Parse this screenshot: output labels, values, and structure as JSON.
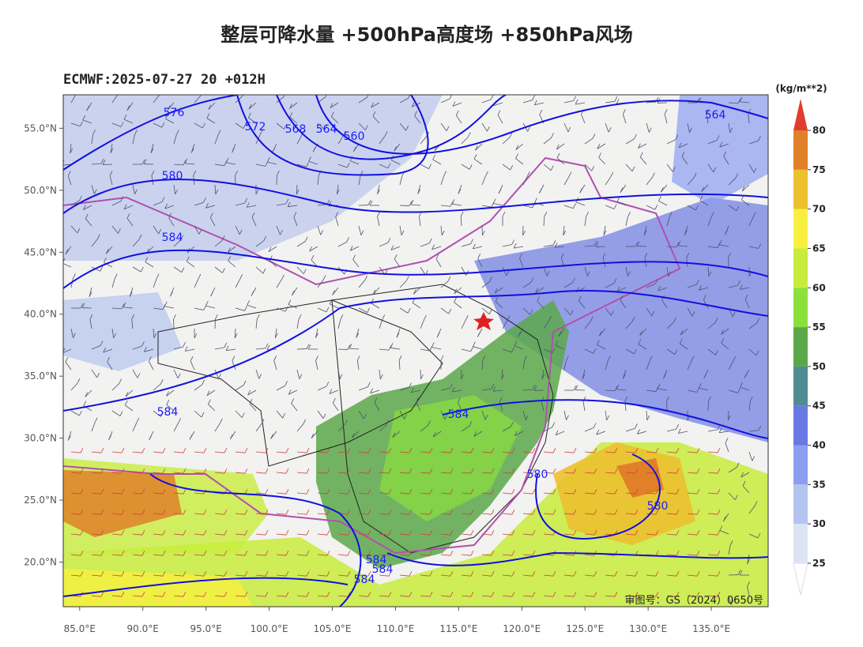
{
  "title": "整层可降水量 +500hPa高度场 +850hPa风场",
  "subtitle": "ECMWF:2025-07-27 20 +012H",
  "unit": "(kg/m**2)",
  "map_note": "审图号：GS（2024）0650号",
  "lon_range": [
    83.7,
    139.5
  ],
  "lat_range": [
    16.4,
    57.7
  ],
  "lon_ticks": [
    {
      "value": 85,
      "label": "85.0°E"
    },
    {
      "value": 90,
      "label": "90.0°E"
    },
    {
      "value": 95,
      "label": "95.0°E"
    },
    {
      "value": 100,
      "label": "100.0°E"
    },
    {
      "value": 105,
      "label": "105.0°E"
    },
    {
      "value": 110,
      "label": "110.0°E"
    },
    {
      "value": 115,
      "label": "115.0°E"
    },
    {
      "value": 120,
      "label": "120.0°E"
    },
    {
      "value": 125,
      "label": "125.0°E"
    },
    {
      "value": 130,
      "label": "130.0°E"
    },
    {
      "value": 135,
      "label": "135.0°E"
    }
  ],
  "lat_ticks": [
    {
      "value": 55,
      "label": "55.0°N"
    },
    {
      "value": 50,
      "label": "50.0°N"
    },
    {
      "value": 45,
      "label": "45.0°N"
    },
    {
      "value": 40,
      "label": "40.0°N"
    },
    {
      "value": 35,
      "label": "35.0°N"
    },
    {
      "value": 30,
      "label": "30.0°N"
    },
    {
      "value": 25,
      "label": "25.0°N"
    },
    {
      "value": 20,
      "label": "20.0°N"
    }
  ],
  "colorbar": {
    "levels": [
      25,
      30,
      35,
      40,
      45,
      50,
      55,
      60,
      65,
      70,
      75,
      80
    ],
    "colors": [
      "#dce4f4",
      "#b4c4f0",
      "#8c9ef0",
      "#6a78e4",
      "#4f8c94",
      "#5aa84a",
      "#8ce03c",
      "#c8ec3c",
      "#f8f040",
      "#ecc030",
      "#e08028",
      "#e03c30"
    ]
  },
  "contour_labels": [
    "576",
    "572",
    "568",
    "564",
    "560",
    "564",
    "580",
    "584",
    "584",
    "584",
    "580",
    "580",
    "584",
    "584",
    "584"
  ]
}
